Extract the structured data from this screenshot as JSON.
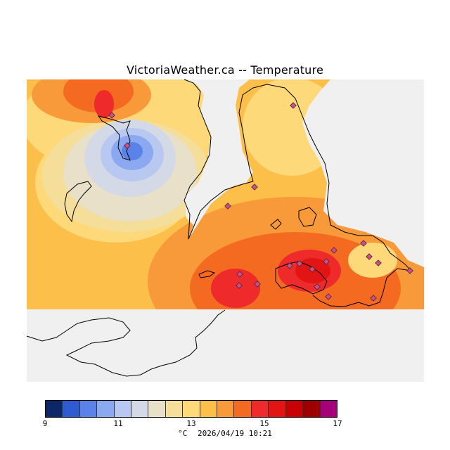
{
  "title": "VictoriaWeather.ca -- Temperature",
  "legend": {
    "colors": [
      "#0d2766",
      "#2f5bd0",
      "#5b82e8",
      "#8ba9f0",
      "#b8c8f0",
      "#d4d9e8",
      "#e8e0c8",
      "#f5dd9a",
      "#fdd97a",
      "#fcbf4a",
      "#f89a3a",
      "#f46a20",
      "#ee2a2a",
      "#e21414",
      "#c80000",
      "#9e0000",
      "#a4007a"
    ],
    "ticks": [
      "9",
      "11",
      "13",
      "15",
      "17"
    ],
    "tick_values": [
      9,
      11,
      13,
      15,
      17
    ],
    "min": 9,
    "max": 17
  },
  "footer": {
    "unit": "°C",
    "timestamp": "2026/04/19 10:21"
  },
  "stations": 20
}
